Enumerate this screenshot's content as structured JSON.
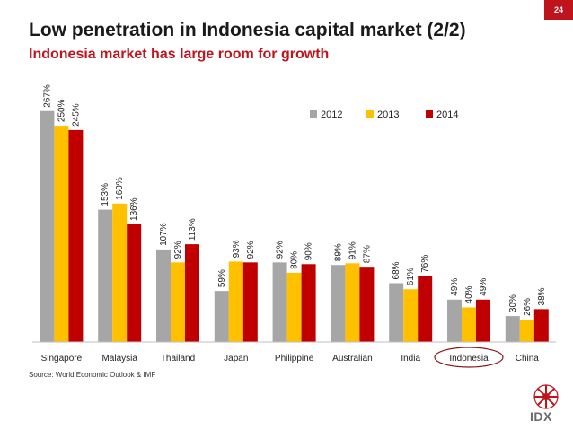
{
  "page_number": "24",
  "title": "Low penetration in Indonesia capital market (2/2)",
  "subtitle": "Indonesia market has large room for growth",
  "source": "Source: World Economic Outlook & IMF",
  "logo_text": "IDX",
  "colors": {
    "2012": "#a6a6a6",
    "2013": "#ffc000",
    "2014": "#c00000",
    "accent": "#c0141c",
    "highlight_ring": "#8b1a1a"
  },
  "chart_data": {
    "type": "bar",
    "title": "",
    "xlabel": "",
    "ylabel": "",
    "ylim": [
      0,
      275
    ],
    "grid": false,
    "legend_position": "top-right",
    "categories": [
      "Singapore",
      "Malaysia",
      "Thailand",
      "Japan",
      "Philippine",
      "Australian",
      "India",
      "Indonesia",
      "China"
    ],
    "highlighted_category": "Indonesia",
    "series": [
      {
        "name": "2012",
        "values": [
          267,
          153,
          107,
          59,
          92,
          89,
          68,
          49,
          30
        ]
      },
      {
        "name": "2013",
        "values": [
          250,
          160,
          92,
          93,
          80,
          91,
          61,
          40,
          26
        ]
      },
      {
        "name": "2014",
        "values": [
          245,
          136,
          113,
          92,
          90,
          87,
          76,
          49,
          38
        ]
      }
    ],
    "value_suffix": "%"
  }
}
